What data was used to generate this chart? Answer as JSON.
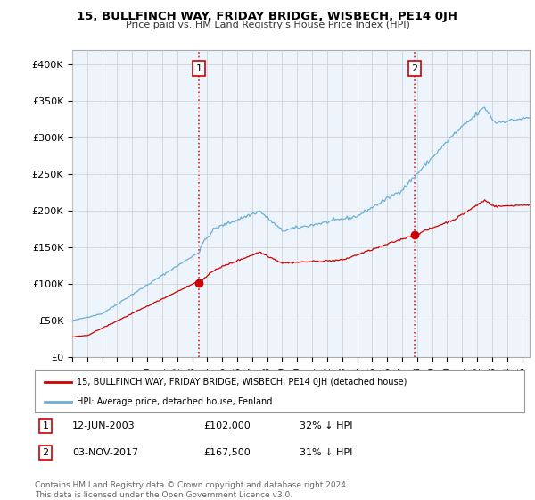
{
  "title": "15, BULLFINCH WAY, FRIDAY BRIDGE, WISBECH, PE14 0JH",
  "subtitle": "Price paid vs. HM Land Registry's House Price Index (HPI)",
  "ylabel_ticks": [
    "£0",
    "£50K",
    "£100K",
    "£150K",
    "£200K",
    "£250K",
    "£300K",
    "£350K",
    "£400K"
  ],
  "ytick_values": [
    0,
    50000,
    100000,
    150000,
    200000,
    250000,
    300000,
    350000,
    400000
  ],
  "ylim": [
    0,
    420000
  ],
  "xlim_start": 1995.0,
  "xlim_end": 2025.5,
  "hpi_color": "#6baed6",
  "price_color": "#cc0000",
  "chart_bg": "#eef4fb",
  "marker1_x": 2003.44,
  "marker1_y": 102000,
  "marker2_x": 2017.84,
  "marker2_y": 167500,
  "legend_label1": "15, BULLFINCH WAY, FRIDAY BRIDGE, WISBECH, PE14 0JH (detached house)",
  "legend_label2": "HPI: Average price, detached house, Fenland",
  "table_row1": [
    "1",
    "12-JUN-2003",
    "£102,000",
    "32% ↓ HPI"
  ],
  "table_row2": [
    "2",
    "03-NOV-2017",
    "£167,500",
    "31% ↓ HPI"
  ],
  "footnote": "Contains HM Land Registry data © Crown copyright and database right 2024.\nThis data is licensed under the Open Government Licence v3.0.",
  "vline1_x": 2003.44,
  "vline2_x": 2017.84,
  "background_color": "#ffffff",
  "grid_color": "#cccccc"
}
